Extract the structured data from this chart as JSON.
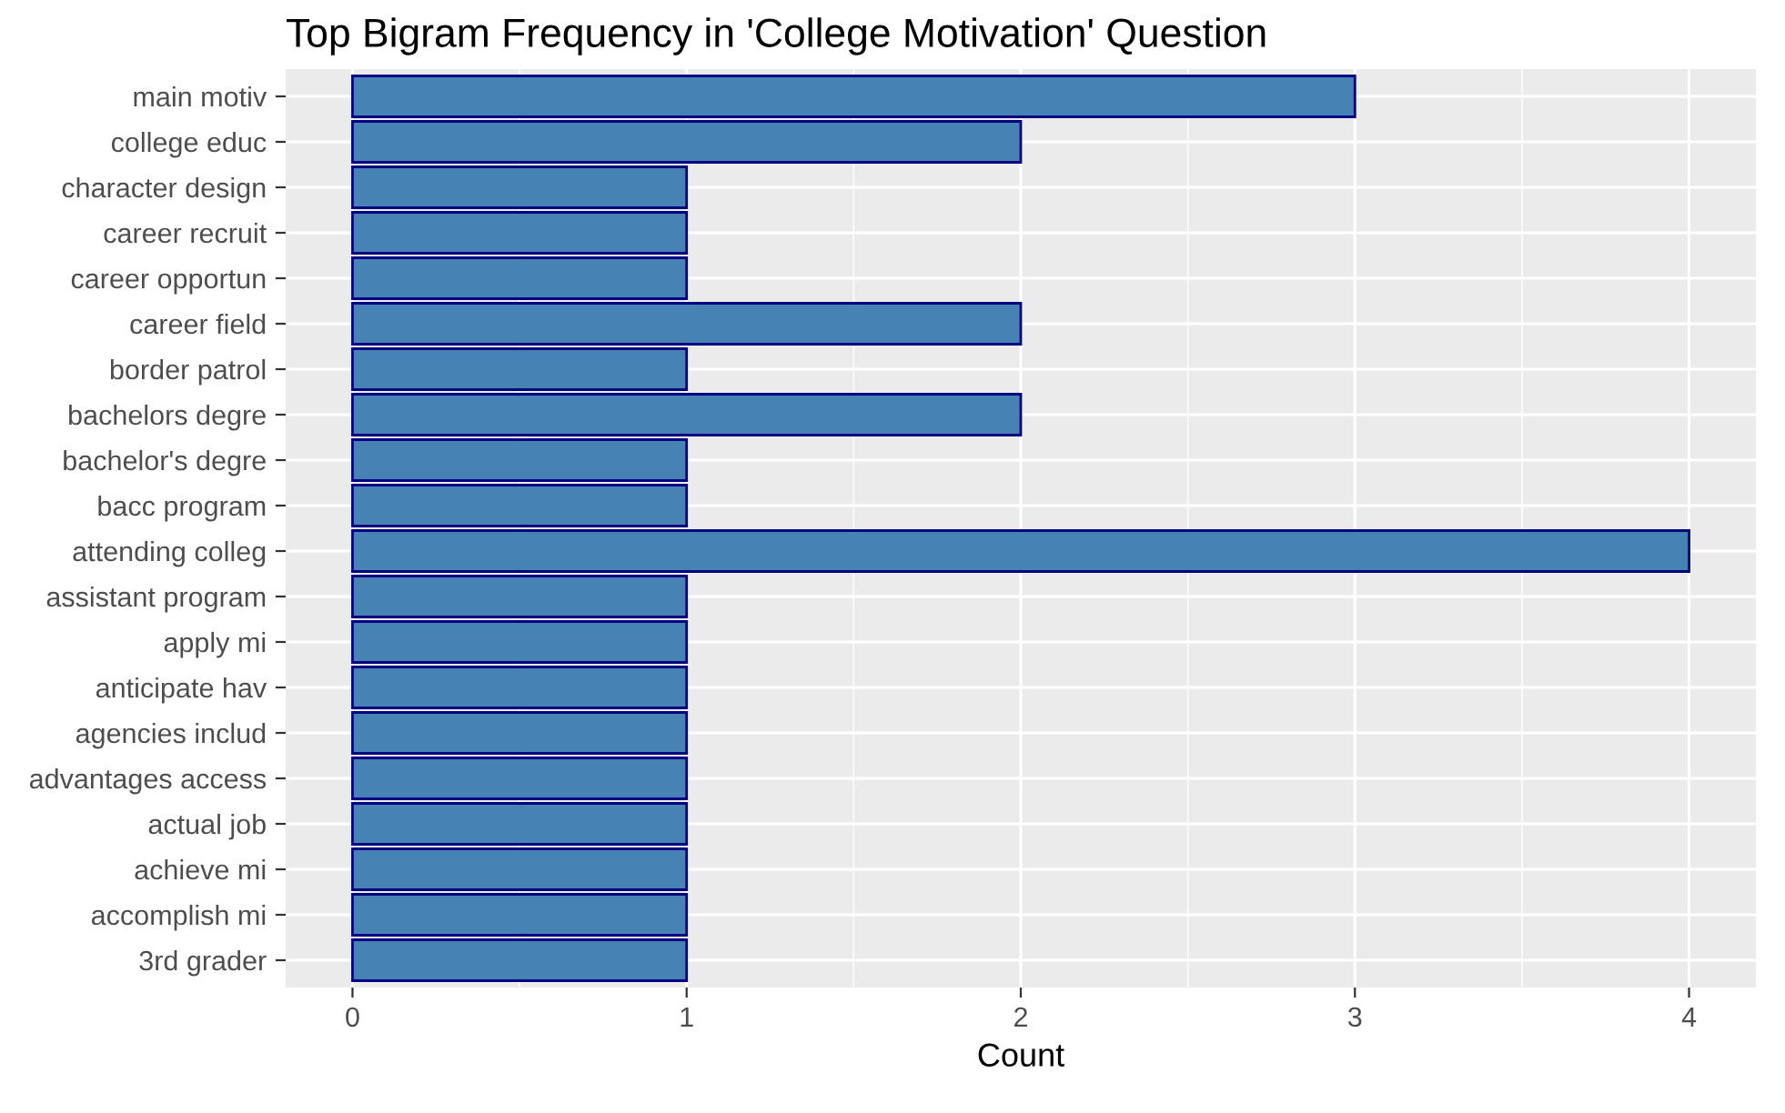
{
  "chart_data": {
    "type": "bar",
    "orientation": "horizontal",
    "title": "Top Bigram Frequency in 'College Motivation' Question",
    "xlabel": "Count",
    "categories": [
      "main motiv",
      "college educ",
      "character design",
      "career recruit",
      "career opportun",
      "career field",
      "border patrol",
      "bachelors degre",
      "bachelor's degre",
      "bacc program",
      "attending colleg",
      "assistant program",
      "apply mi",
      "anticipate hav",
      "agencies includ",
      "advantages access",
      "actual job",
      "achieve mi",
      "accomplish mi",
      "3rd grader"
    ],
    "values": [
      3,
      2,
      1,
      1,
      1,
      2,
      1,
      2,
      1,
      1,
      4,
      1,
      1,
      1,
      1,
      1,
      1,
      1,
      1,
      1
    ],
    "color": "#4682b4",
    "xlim": [
      -0.2,
      4.2
    ],
    "xticks": [
      0,
      1,
      2,
      3,
      4
    ],
    "grid": true
  }
}
